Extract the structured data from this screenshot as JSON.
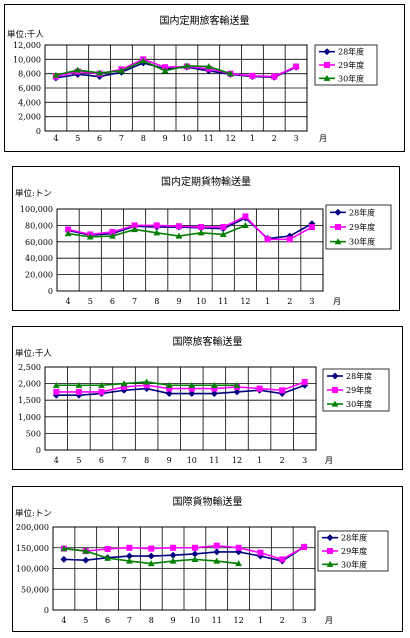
{
  "charts": [
    {
      "title": "国内定期旅客輸送量",
      "unit_label": "単位:千人",
      "month_suffix": "月"
    },
    {
      "title": "国内定期貨物輸送量",
      "unit_label": "単位:トン",
      "month_suffix": "月"
    },
    {
      "title": "国際旅客輸送量",
      "unit_label": "単位:千人",
      "month_suffix": "月"
    },
    {
      "title": "国際貨物輸送量",
      "unit_label": "単位:トン",
      "month_suffix": "月"
    }
  ],
  "colors": {
    "s28": "#000080",
    "s29": "#ff00ff",
    "s30": "#008000"
  },
  "chart_data": [
    {
      "type": "line",
      "title": "国内定期旅客輸送量",
      "ylabel": "単位:千人",
      "xlabel": "月",
      "categories": [
        "4",
        "5",
        "6",
        "7",
        "8",
        "9",
        "10",
        "11",
        "12",
        "1",
        "2",
        "3"
      ],
      "ylim": [
        0,
        12000
      ],
      "yticks": [
        0,
        2000,
        4000,
        6000,
        8000,
        10000,
        12000
      ],
      "grid": true,
      "legend": "right",
      "series": [
        {
          "name": "28年度",
          "marker": "diamond",
          "values": [
            7400,
            7900,
            7600,
            8200,
            9500,
            8700,
            8900,
            8400,
            7900,
            7600,
            7500,
            8900
          ]
        },
        {
          "name": "29年度",
          "marker": "square",
          "values": [
            7600,
            8300,
            8000,
            8600,
            10000,
            8900,
            9000,
            8700,
            8000,
            7700,
            7600,
            9000
          ]
        },
        {
          "name": "30年度",
          "marker": "triangle",
          "values": [
            7800,
            8500,
            8100,
            8400,
            9800,
            8400,
            9100,
            9000,
            8000,
            null,
            null,
            null
          ]
        }
      ]
    },
    {
      "type": "line",
      "title": "国内定期貨物輸送量",
      "ylabel": "単位:トン",
      "xlabel": "月",
      "categories": [
        "4",
        "5",
        "6",
        "7",
        "8",
        "9",
        "10",
        "11",
        "12",
        "1",
        "2",
        "3"
      ],
      "ylim": [
        0,
        100000
      ],
      "yticks": [
        0,
        20000,
        40000,
        60000,
        80000,
        100000
      ],
      "grid": true,
      "legend": "right",
      "series": [
        {
          "name": "28年度",
          "marker": "diamond",
          "values": [
            74000,
            68000,
            70000,
            79000,
            78000,
            78000,
            77000,
            76000,
            89000,
            64000,
            67000,
            82000
          ]
        },
        {
          "name": "29年度",
          "marker": "square",
          "values": [
            75000,
            69000,
            72000,
            80000,
            80000,
            79000,
            78000,
            78000,
            91000,
            63000,
            63000,
            78000
          ]
        },
        {
          "name": "30年度",
          "marker": "triangle",
          "values": [
            70000,
            66000,
            67000,
            75000,
            71000,
            67000,
            71000,
            69000,
            80000,
            null,
            null,
            null
          ]
        }
      ]
    },
    {
      "type": "line",
      "title": "国際旅客輸送量",
      "ylabel": "単位:千人",
      "xlabel": "月",
      "categories": [
        "4",
        "5",
        "6",
        "7",
        "8",
        "9",
        "10",
        "11",
        "12",
        "1",
        "2",
        "3"
      ],
      "ylim": [
        0,
        2500
      ],
      "yticks": [
        0,
        500,
        1000,
        1500,
        2000,
        2500
      ],
      "grid": true,
      "legend": "right",
      "series": [
        {
          "name": "28年度",
          "marker": "diamond",
          "values": [
            1650,
            1650,
            1700,
            1800,
            1850,
            1700,
            1700,
            1700,
            1750,
            1800,
            1700,
            1950
          ]
        },
        {
          "name": "29年度",
          "marker": "square",
          "values": [
            1750,
            1750,
            1750,
            1900,
            1950,
            1850,
            1850,
            1850,
            1900,
            1850,
            1800,
            2050
          ]
        },
        {
          "name": "30年度",
          "marker": "triangle",
          "values": [
            1950,
            1950,
            1950,
            2000,
            2050,
            1950,
            1950,
            1950,
            1950,
            null,
            null,
            null
          ]
        }
      ]
    },
    {
      "type": "line",
      "title": "国際貨物輸送量",
      "ylabel": "単位:トン",
      "xlabel": "月",
      "categories": [
        "4",
        "5",
        "6",
        "7",
        "8",
        "9",
        "10",
        "11",
        "12",
        "1",
        "2",
        "3"
      ],
      "ylim": [
        0,
        200000
      ],
      "yticks": [
        0,
        50000,
        100000,
        150000,
        200000
      ],
      "grid": true,
      "legend": "right",
      "series": [
        {
          "name": "28年度",
          "marker": "diamond",
          "values": [
            122000,
            120000,
            126000,
            130000,
            130000,
            132000,
            135000,
            140000,
            140000,
            130000,
            118000,
            152000
          ]
        },
        {
          "name": "29年度",
          "marker": "square",
          "values": [
            148000,
            142000,
            147000,
            150000,
            148000,
            150000,
            150000,
            155000,
            150000,
            138000,
            122000,
            152000
          ]
        },
        {
          "name": "30年度",
          "marker": "triangle",
          "values": [
            148000,
            142000,
            125000,
            118000,
            112000,
            118000,
            122000,
            118000,
            112000,
            null,
            null,
            null
          ]
        }
      ]
    }
  ]
}
